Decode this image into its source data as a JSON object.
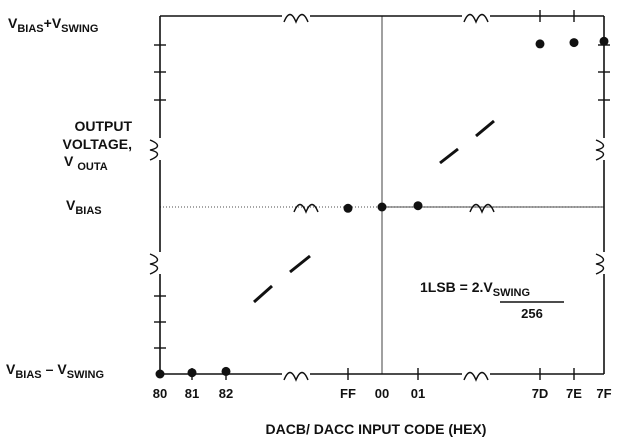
{
  "chart_data": {
    "type": "scatter",
    "title": "",
    "xlabel": "DACB/ DACC INPUT CODE (HEX)",
    "ylabel_lines": [
      "OUTPUT",
      "VOLTAGE,"
    ],
    "ylabel_sym": {
      "main": "V",
      "sub": "OUTA"
    },
    "y_labels": {
      "top": {
        "main1": "V",
        "sub1": "BIAS",
        "op": "+",
        "main2": "V",
        "sub2": "SWING"
      },
      "mid": {
        "main": "V",
        "sub": "BIAS"
      },
      "bottom": {
        "main1": "V",
        "sub1": "BIAS",
        "op": "–",
        "main2": "V",
        "sub2": "SWING"
      }
    },
    "x_tick_labels": [
      "80",
      "81",
      "82",
      "FF",
      "00",
      "01",
      "7D",
      "7E",
      "7F"
    ],
    "annotation": {
      "lhs": "1LSB = 2.V",
      "sub": "SWING",
      "den": "256"
    },
    "series": [
      {
        "type": "points",
        "x": [
          "80",
          "81",
          "82",
          "FF",
          "00",
          "01",
          "7D",
          "7E",
          "7F"
        ],
        "y": [
          -1.0,
          -0.9922,
          -0.9844,
          -0.0078,
          0.0,
          0.0078,
          0.9766,
          0.9844,
          0.9922
        ]
      }
    ],
    "ylim": [
      -1,
      1
    ],
    "grid": false
  }
}
